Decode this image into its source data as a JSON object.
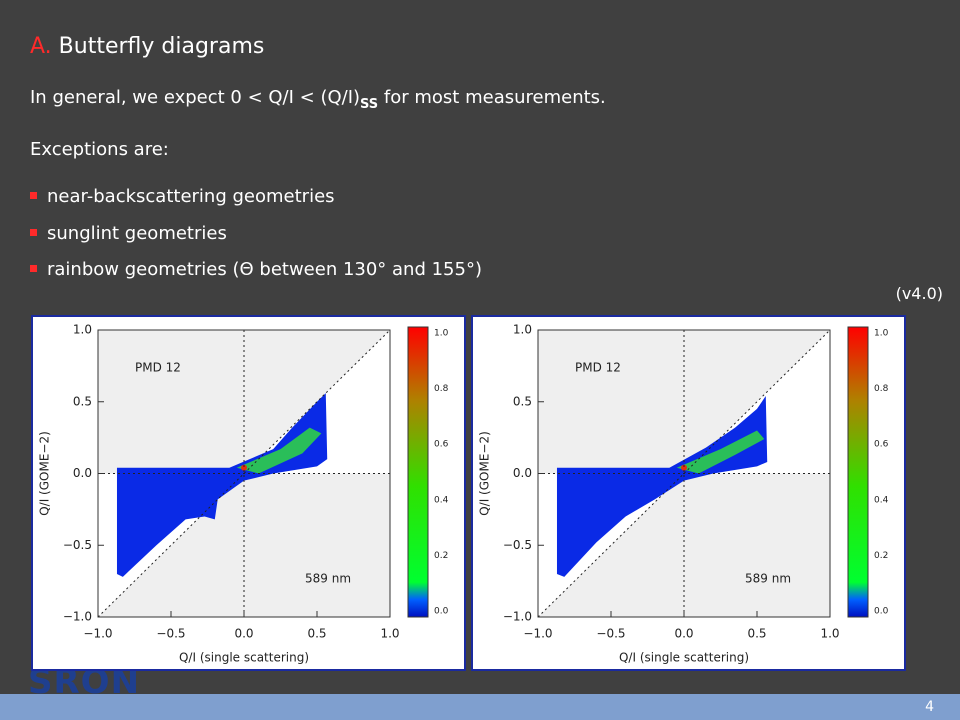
{
  "header": {
    "label": "A.",
    "title": "Butterfly diagrams"
  },
  "body": {
    "line1": "In general, we expect  0 < Q/I < (Q/I)",
    "line1_sub": "SS",
    "line1_end": " for most measurements.",
    "line2": "Exceptions are:",
    "bullets": [
      "near-backscattering geometries",
      "sunglint geometries",
      "rainbow geometries (Θ between 130° and 155°)"
    ],
    "version": "(v4.0)"
  },
  "figures": [
    {
      "annotation": "PMD 12",
      "wavelength": "589 nm",
      "xlabel": "Q/I (single scattering)",
      "ylabel": "Q/I (GOME−2)",
      "xticks": [
        "−1.0",
        "−0.5",
        "0.0",
        "0.5",
        "1.0"
      ],
      "yticks": [
        "1.0",
        "0.5",
        "0.0",
        "−0.5",
        "−1.0"
      ],
      "colorbar_ticks": [
        "1.0",
        "0.8",
        "0.6",
        "0.4",
        "0.2",
        "0.0"
      ]
    },
    {
      "annotation": "PMD 12",
      "wavelength": "589 nm",
      "xlabel": "Q/I (single scattering)",
      "ylabel": "Q/I (GOME−2)",
      "xticks": [
        "−1.0",
        "−0.5",
        "0.0",
        "0.5",
        "1.0"
      ],
      "yticks": [
        "1.0",
        "0.5",
        "0.0",
        "−0.5",
        "−1.0"
      ],
      "colorbar_ticks": [
        "1.0",
        "0.8",
        "0.6",
        "0.4",
        "0.2",
        "0.0"
      ]
    }
  ],
  "footer": {
    "logo": "SRON",
    "page": "4"
  }
}
